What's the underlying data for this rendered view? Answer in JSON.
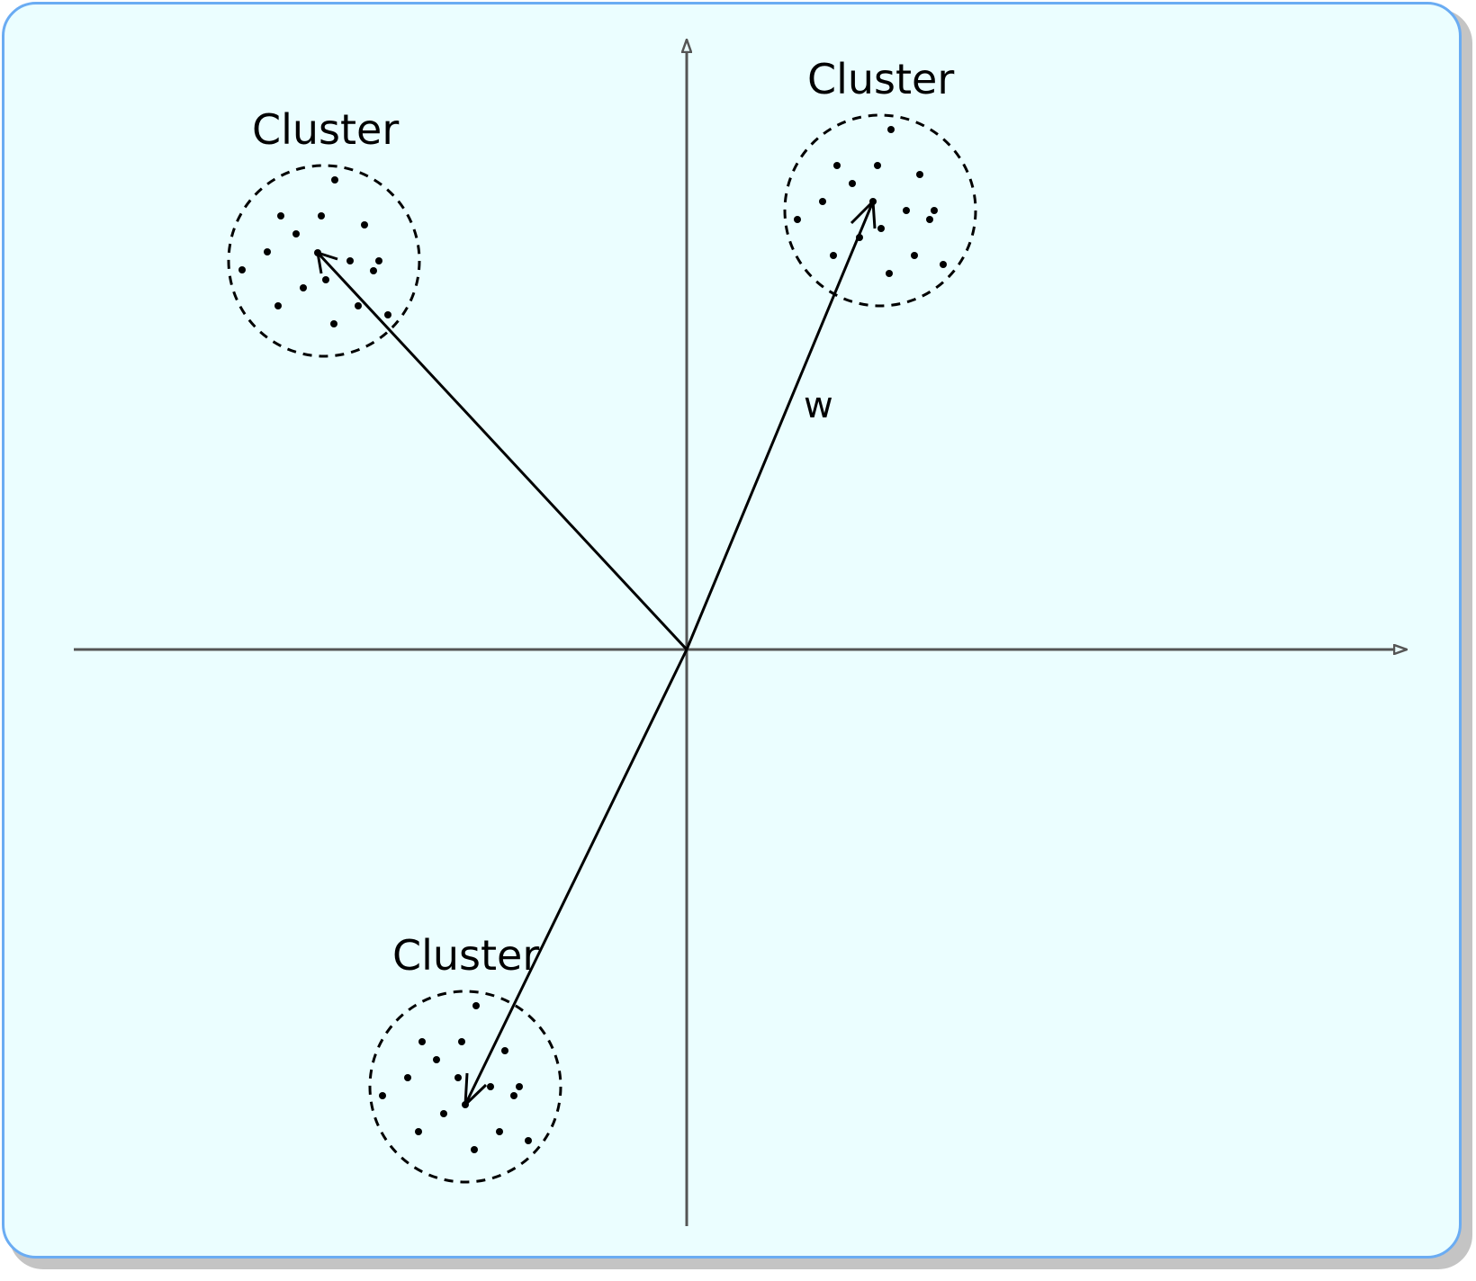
{
  "clusters": [
    {
      "id": "top-left",
      "label": "Cluster"
    },
    {
      "id": "top-right",
      "label": "Cluster"
    },
    {
      "id": "bottom",
      "label": "Cluster"
    }
  ],
  "vector_label": "w",
  "colors": {
    "background": "#ebfeff",
    "frame_border": "#6aacf3",
    "axis": "#555555",
    "ink": "#000000"
  }
}
